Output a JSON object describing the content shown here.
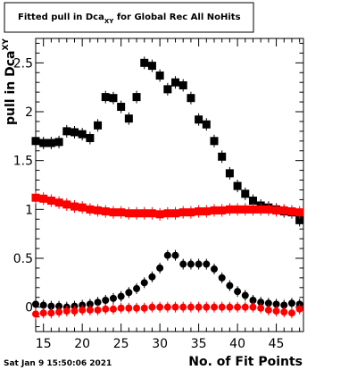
{
  "chart_data": {
    "type": "scatter",
    "title_main": "Fitted pull in Dca",
    "title_sub": "XY",
    "title_rest": " for Global Rec All NoHits",
    "ylabel_main": "pull in Dca",
    "ylabel_sub": "XY",
    "xlabel": "No. of Fit Points",
    "footer": "Sat Jan  9 15:50:06 2021",
    "xlim": [
      14,
      48.5
    ],
    "ylim": [
      -0.25,
      2.75
    ],
    "x_ticks": [
      15,
      20,
      25,
      30,
      35,
      40,
      45
    ],
    "x_tick_labels": [
      "15",
      "20",
      "25",
      "30",
      "35",
      "40",
      "45"
    ],
    "y_ticks": [
      0,
      0.5,
      1,
      1.5,
      2,
      2.5
    ],
    "y_tick_labels": [
      "0",
      "0.5",
      "1",
      "1.5",
      "2",
      "2.5"
    ],
    "grid": false,
    "series": [
      {
        "marker": "square",
        "color": "#000000",
        "x": [
          14,
          15,
          16,
          17,
          18,
          19,
          20,
          21,
          22,
          23,
          24,
          25,
          26,
          27,
          28,
          29,
          30,
          31,
          32,
          33,
          34,
          35,
          36,
          37,
          38,
          39,
          40,
          41,
          42,
          43,
          44,
          45,
          46,
          47,
          48
        ],
        "values": [
          1.7,
          1.68,
          1.68,
          1.69,
          1.8,
          1.79,
          1.77,
          1.73,
          1.86,
          2.15,
          2.14,
          2.05,
          1.93,
          2.15,
          2.5,
          2.47,
          2.37,
          2.23,
          2.3,
          2.27,
          2.14,
          1.92,
          1.87,
          1.7,
          1.54,
          1.37,
          1.24,
          1.16,
          1.09,
          1.04,
          1.02,
          1.0,
          0.98,
          0.97,
          0.89
        ]
      },
      {
        "marker": "square",
        "color": "#ff0000",
        "x": [
          14,
          15,
          16,
          17,
          18,
          19,
          20,
          21,
          22,
          23,
          24,
          25,
          26,
          27,
          28,
          29,
          30,
          31,
          32,
          33,
          34,
          35,
          36,
          37,
          38,
          39,
          40,
          41,
          42,
          43,
          44,
          45,
          46,
          47,
          48
        ],
        "values": [
          1.12,
          1.11,
          1.09,
          1.07,
          1.05,
          1.03,
          1.02,
          1.0,
          0.99,
          0.98,
          0.97,
          0.97,
          0.96,
          0.96,
          0.96,
          0.96,
          0.95,
          0.96,
          0.96,
          0.97,
          0.97,
          0.98,
          0.98,
          0.99,
          0.99,
          1.0,
          1.0,
          1.0,
          1.0,
          1.0,
          1.0,
          0.99,
          0.99,
          0.98,
          0.97
        ]
      },
      {
        "marker": "circle",
        "color": "#000000",
        "x": [
          14,
          15,
          16,
          17,
          18,
          19,
          20,
          21,
          22,
          23,
          24,
          25,
          26,
          27,
          28,
          29,
          30,
          31,
          32,
          33,
          34,
          35,
          36,
          37,
          38,
          39,
          40,
          41,
          42,
          43,
          44,
          45,
          46,
          47,
          48
        ],
        "values": [
          0.03,
          0.02,
          0.01,
          0.01,
          0.0,
          0.01,
          0.02,
          0.03,
          0.05,
          0.07,
          0.09,
          0.11,
          0.15,
          0.19,
          0.25,
          0.31,
          0.4,
          0.53,
          0.53,
          0.44,
          0.44,
          0.44,
          0.44,
          0.39,
          0.3,
          0.22,
          0.16,
          0.12,
          0.07,
          0.05,
          0.04,
          0.03,
          0.02,
          0.04,
          0.03
        ]
      },
      {
        "marker": "circle",
        "color": "#ff0000",
        "x": [
          14,
          15,
          16,
          17,
          18,
          19,
          20,
          21,
          22,
          23,
          24,
          25,
          26,
          27,
          28,
          29,
          30,
          31,
          32,
          33,
          34,
          35,
          36,
          37,
          38,
          39,
          40,
          41,
          42,
          43,
          44,
          45,
          46,
          47,
          48
        ],
        "values": [
          -0.07,
          -0.06,
          -0.06,
          -0.05,
          -0.04,
          -0.04,
          -0.03,
          -0.03,
          -0.03,
          -0.02,
          -0.02,
          -0.01,
          -0.01,
          -0.01,
          -0.01,
          0.0,
          0.0,
          0.0,
          0.0,
          0.0,
          0.0,
          0.0,
          0.0,
          0.0,
          0.0,
          0.0,
          0.0,
          0.0,
          0.0,
          -0.01,
          -0.03,
          -0.04,
          -0.05,
          -0.06,
          -0.02
        ]
      }
    ]
  }
}
